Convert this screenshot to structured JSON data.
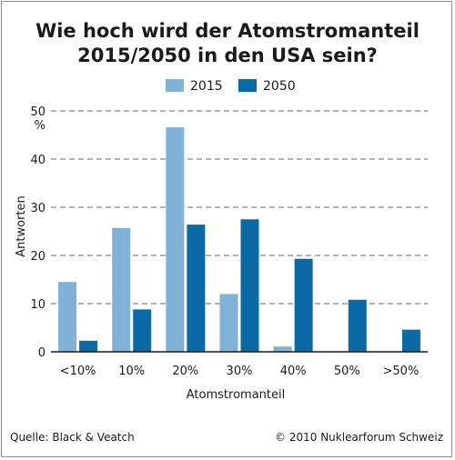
{
  "chart_data": {
    "type": "bar",
    "title": "Wie hoch wird der Atomstromanteil 2015/2050 in den USA sein?",
    "title_lines": [
      "Wie hoch wird der Atomstromanteil",
      "2015/2050 in den USA sein?"
    ],
    "xlabel": "Atomstromanteil",
    "ylabel": "Antworten",
    "yunit": "%",
    "ylim": [
      0,
      50
    ],
    "yticks": [
      0,
      10,
      20,
      30,
      40,
      50
    ],
    "grid": true,
    "legend_position": "top-center",
    "categories": [
      "<10%",
      "10%",
      "20%",
      "30%",
      "40%",
      "50%",
      ">50%"
    ],
    "series": [
      {
        "name": "2015",
        "color": "#7fb2d6",
        "values": [
          14.5,
          25.7,
          46.6,
          12.0,
          1.1,
          0,
          0
        ]
      },
      {
        "name": "2050",
        "color": "#0a6aa6",
        "values": [
          2.3,
          8.8,
          26.4,
          27.5,
          19.3,
          10.8,
          4.6
        ]
      }
    ]
  },
  "footer": {
    "source": "Quelle: Black & Veatch",
    "copyright": "© 2010 Nuklearforum Schweiz"
  }
}
